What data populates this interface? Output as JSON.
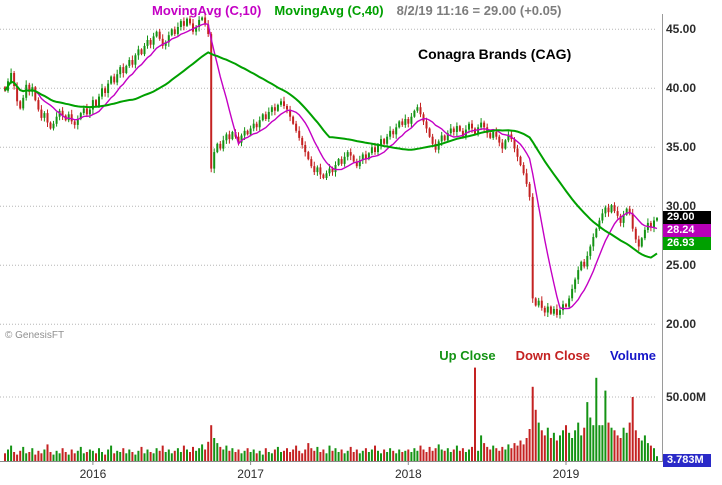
{
  "header": {
    "ma10_label": "MovingAvg (C,10)",
    "ma40_label": "MovingAvg (C,40)",
    "quote": "8/2/19 11:16 = 29.00 (+0.05)"
  },
  "title": "Conagra Brands (CAG)",
  "watermark": "© GenesisFT",
  "colors": {
    "ma10": "#c400c4",
    "ma40": "#00a000",
    "up": "#149314",
    "down": "#c42222",
    "volume_label": "#1515c8",
    "quote_text": "#7d7d7d",
    "grid": "#b5b5b5",
    "axis_line": "#8a8a8a",
    "badge_last_bg": "#000000",
    "badge_ma10_bg": "#b800b8",
    "badge_ma40_bg": "#00a000",
    "badge_volume_bg": "#2a2ac8"
  },
  "y_axis": {
    "labels": [
      "45.00",
      "40.00",
      "35.00",
      "30.00",
      "25.00",
      "20.00"
    ],
    "values": [
      45,
      40,
      35,
      30,
      25,
      20
    ]
  },
  "volume_axis": {
    "label": "50.00M",
    "value": 50
  },
  "badges": {
    "last": "29.00",
    "ma10": "28.24",
    "ma40": "26.93",
    "volume": "3.783M"
  },
  "legend": {
    "up": "Up Close",
    "down": "Down Close",
    "volume": "Volume"
  },
  "x_axis": {
    "labels": [
      "2016",
      "2017",
      "2018",
      "2019"
    ],
    "year_start_indices": [
      29,
      81,
      133,
      185
    ]
  },
  "chart_data": {
    "type": "candlestick_with_volume",
    "title": "Conagra Brands (CAG)",
    "interval": "weekly",
    "ma_periods": [
      10,
      40
    ],
    "price_ylim": [
      18.0,
      46.3
    ],
    "volume_ylim_millions": [
      0,
      86
    ],
    "volume_tick_millions": 50,
    "last_quote": {
      "date": "8/2/19",
      "time": "11:16",
      "price": 29.0,
      "change": 0.05,
      "ma10": 28.24,
      "ma40": 26.93,
      "volume": "3.783M"
    },
    "closes": [
      39.8,
      40.6,
      41.3,
      40.2,
      38.9,
      38.3,
      39.2,
      40.3,
      39.7,
      40.1,
      39.0,
      38.2,
      37.5,
      37.9,
      37.1,
      36.6,
      37.0,
      37.6,
      38.1,
      37.7,
      37.3,
      37.8,
      37.2,
      36.9,
      37.4,
      37.9,
      38.3,
      37.8,
      38.2,
      39.0,
      38.5,
      39.3,
      40.0,
      39.6,
      40.4,
      41.0,
      40.5,
      41.2,
      41.8,
      41.3,
      41.9,
      42.4,
      42.0,
      42.8,
      43.3,
      42.9,
      43.6,
      44.1,
      43.7,
      44.4,
      44.8,
      44.2,
      43.6,
      43.9,
      44.5,
      45.0,
      44.6,
      45.2,
      45.7,
      45.3,
      45.9,
      45.5,
      44.8,
      45.2,
      45.8,
      46.0,
      45.4,
      44.6,
      33.2,
      34.6,
      35.3,
      34.9,
      35.6,
      36.1,
      35.7,
      36.3,
      35.9,
      35.4,
      36.0,
      36.4,
      36.1,
      36.6,
      37.0,
      36.7,
      37.3,
      37.8,
      37.4,
      38.0,
      38.4,
      38.1,
      38.6,
      38.9,
      38.5,
      38.2,
      37.6,
      37.0,
      36.4,
      35.8,
      35.2,
      34.6,
      34.0,
      33.4,
      32.9,
      33.3,
      32.7,
      32.4,
      32.8,
      33.2,
      32.9,
      33.5,
      34.0,
      33.6,
      34.2,
      34.6,
      34.3,
      33.8,
      33.4,
      33.9,
      34.4,
      34.0,
      34.5,
      35.0,
      34.6,
      35.2,
      35.7,
      35.3,
      35.9,
      36.4,
      36.1,
      36.7,
      37.2,
      36.9,
      37.4,
      37.0,
      37.6,
      38.1,
      38.4,
      37.8,
      37.2,
      36.6,
      35.9,
      35.3,
      34.8,
      35.5,
      36.0,
      35.6,
      36.2,
      36.6,
      36.3,
      36.8,
      36.4,
      35.9,
      36.5,
      37.0,
      36.6,
      36.1,
      36.7,
      37.1,
      36.7,
      36.2,
      35.8,
      36.3,
      35.9,
      35.4,
      34.9,
      35.6,
      36.1,
      35.7,
      34.9,
      34.2,
      33.5,
      32.8,
      31.9,
      30.8,
      22.2,
      21.6,
      22.0,
      21.4,
      21.0,
      21.5,
      20.9,
      21.3,
      20.8,
      21.2,
      21.7,
      21.5,
      22.2,
      23.0,
      23.8,
      24.6,
      25.3,
      24.9,
      25.8,
      26.6,
      27.4,
      28.1,
      28.8,
      29.4,
      29.9,
      29.5,
      30.1,
      29.6,
      29.2,
      28.6,
      29.3,
      29.8,
      29.4,
      28.1,
      27.2,
      26.6,
      27.3,
      28.0,
      28.6,
      28.2,
      28.8,
      29.0
    ],
    "volumes_millions": [
      6,
      9,
      12,
      7,
      5,
      8,
      11,
      6,
      7,
      10,
      5,
      8,
      6,
      9,
      13,
      7,
      5,
      8,
      6,
      10,
      7,
      5,
      9,
      6,
      8,
      11,
      6,
      7,
      9,
      8,
      6,
      10,
      7,
      5,
      9,
      12,
      6,
      8,
      7,
      10,
      6,
      9,
      7,
      5,
      8,
      11,
      6,
      9,
      7,
      6,
      10,
      8,
      12,
      7,
      9,
      6,
      8,
      10,
      7,
      12,
      9,
      7,
      11,
      8,
      10,
      13,
      9,
      15,
      28,
      18,
      14,
      11,
      9,
      12,
      8,
      10,
      7,
      9,
      6,
      8,
      10,
      7,
      9,
      6,
      8,
      5,
      10,
      7,
      6,
      9,
      11,
      7,
      8,
      10,
      7,
      9,
      12,
      8,
      6,
      9,
      14,
      10,
      8,
      11,
      7,
      9,
      6,
      12,
      8,
      10,
      7,
      9,
      6,
      8,
      11,
      7,
      9,
      6,
      8,
      10,
      7,
      9,
      12,
      8,
      6,
      9,
      7,
      10,
      8,
      6,
      9,
      7,
      8,
      9,
      7,
      10,
      8,
      12,
      9,
      7,
      11,
      8,
      10,
      13,
      9,
      8,
      10,
      7,
      9,
      12,
      8,
      10,
      7,
      9,
      11,
      73,
      8,
      20,
      14,
      11,
      9,
      12,
      10,
      8,
      11,
      9,
      13,
      10,
      14,
      12,
      16,
      13,
      18,
      25,
      58,
      40,
      30,
      24,
      20,
      26,
      18,
      22,
      16,
      20,
      24,
      28,
      22,
      18,
      24,
      30,
      20,
      26,
      46,
      34,
      28,
      65,
      28,
      28,
      55,
      30,
      26,
      24,
      20,
      18,
      26,
      22,
      30,
      50,
      24,
      18,
      16,
      20,
      14,
      12,
      10,
      3.783
    ]
  }
}
